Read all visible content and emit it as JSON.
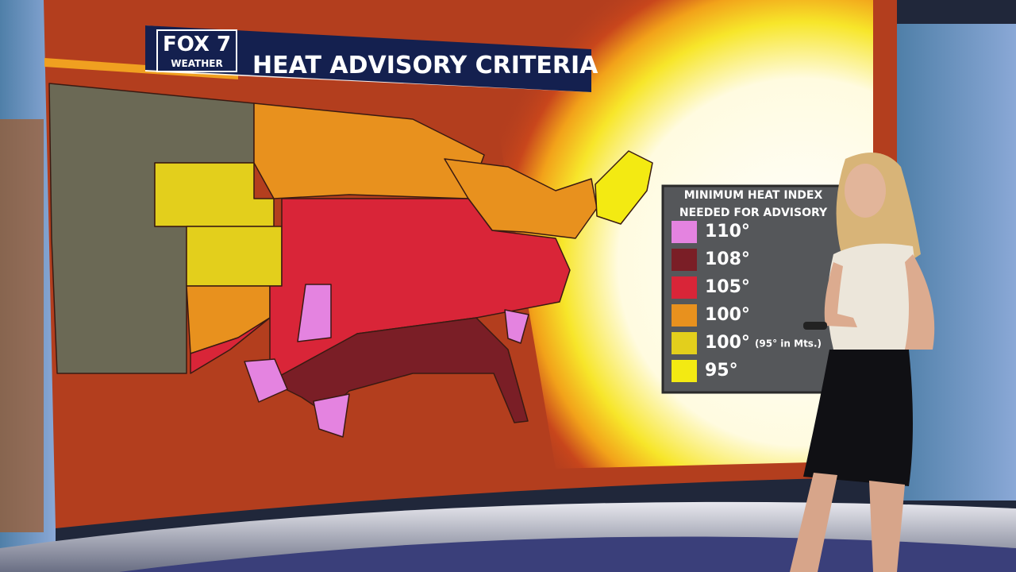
{
  "header": {
    "logo": "FOX 7",
    "logo_sub": "WEATHER",
    "title": "HEAT ADVISORY CRITERIA"
  },
  "legend": {
    "title_line1": "MINIMUM HEAT INDEX",
    "title_line2": "NEEDED FOR ADVISORY",
    "items": [
      {
        "label": "110°",
        "color": "#e483e0"
      },
      {
        "label": "108°",
        "color": "#7a1e26"
      },
      {
        "label": "105°",
        "color": "#d92538"
      },
      {
        "label": "100°",
        "color": "#e8911e"
      },
      {
        "label": "100°",
        "note": "(95° in Mts.)",
        "color": "#e3cf1c"
      },
      {
        "label": "95°",
        "color": "#f3ea12"
      }
    ]
  }
}
